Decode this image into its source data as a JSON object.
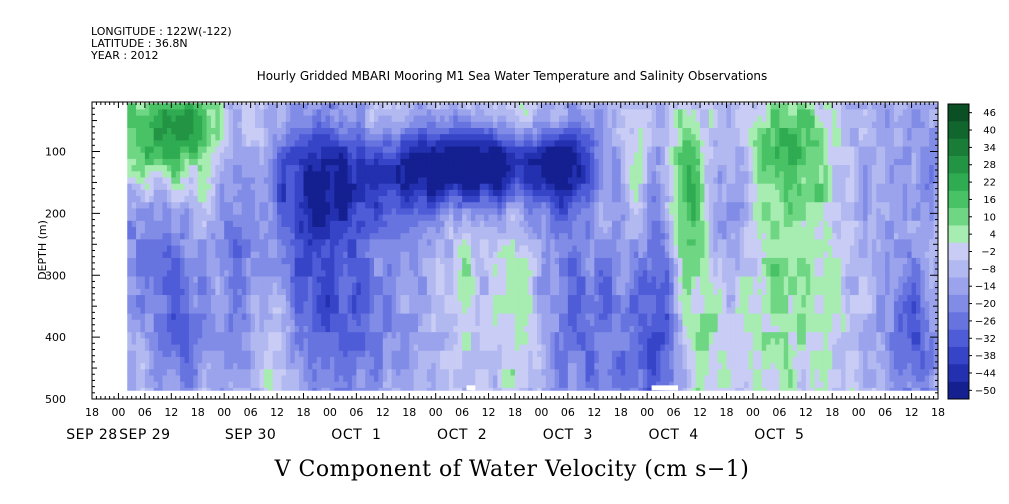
{
  "header": {
    "longitude": "LONGITUDE : 122W(-122)",
    "latitude": "LATITUDE : 36.8N",
    "year": "YEAR : 2012"
  },
  "chart_data": {
    "type": "heatmap",
    "title": "Hourly Gridded MBARI Mooring M1 Sea Water Temperature and Salinity Observations",
    "xlabel": "V Component of Water Velocity (cm s−1)",
    "ylabel": "DEPTH (m)",
    "y_inverted": true,
    "ylim": [
      500,
      20
    ],
    "yticks": [
      100,
      200,
      300,
      400,
      500
    ],
    "xlim_hours": [
      -6,
      186
    ],
    "x_hour_ticks": [
      {
        "h": -6,
        "label": "18"
      },
      {
        "h": 0,
        "label": "00"
      },
      {
        "h": 6,
        "label": "06"
      },
      {
        "h": 12,
        "label": "12"
      },
      {
        "h": 18,
        "label": "18"
      },
      {
        "h": 24,
        "label": "00"
      },
      {
        "h": 30,
        "label": "06"
      },
      {
        "h": 36,
        "label": "12"
      },
      {
        "h": 42,
        "label": "18"
      },
      {
        "h": 48,
        "label": "00"
      },
      {
        "h": 54,
        "label": "06"
      },
      {
        "h": 60,
        "label": "12"
      },
      {
        "h": 66,
        "label": "18"
      },
      {
        "h": 72,
        "label": "00"
      },
      {
        "h": 78,
        "label": "06"
      },
      {
        "h": 84,
        "label": "12"
      },
      {
        "h": 90,
        "label": "18"
      },
      {
        "h": 96,
        "label": "00"
      },
      {
        "h": 102,
        "label": "06"
      },
      {
        "h": 108,
        "label": "12"
      },
      {
        "h": 114,
        "label": "18"
      },
      {
        "h": 120,
        "label": "00"
      },
      {
        "h": 126,
        "label": "06"
      },
      {
        "h": 132,
        "label": "12"
      },
      {
        "h": 138,
        "label": "18"
      },
      {
        "h": 144,
        "label": "00"
      },
      {
        "h": 150,
        "label": "06"
      },
      {
        "h": 156,
        "label": "12"
      },
      {
        "h": 162,
        "label": "18"
      },
      {
        "h": 168,
        "label": "00"
      },
      {
        "h": 174,
        "label": "06"
      },
      {
        "h": 180,
        "label": "12"
      },
      {
        "h": 186,
        "label": "18"
      }
    ],
    "x_day_labels": [
      {
        "h": -6,
        "label": "SEP 28"
      },
      {
        "h": 6,
        "label": "SEP 29"
      },
      {
        "h": 30,
        "label": "SEP 30"
      },
      {
        "h": 54,
        "label": "OCT  1"
      },
      {
        "h": 78,
        "label": "OCT  2"
      },
      {
        "h": 102,
        "label": "OCT  3"
      },
      {
        "h": 126,
        "label": "OCT  4"
      },
      {
        "h": 150,
        "label": "OCT  5"
      }
    ],
    "colorbar_labels": [
      "46",
      "40",
      "34",
      "28",
      "22",
      "16",
      "10",
      "4",
      "−2",
      "−8",
      "−14",
      "−20",
      "−26",
      "−32",
      "−38",
      "−44",
      "−50"
    ],
    "color_levels": [
      {
        "v": 46,
        "c": "#0b4f24"
      },
      {
        "v": 40,
        "c": "#11662e"
      },
      {
        "v": 34,
        "c": "#197d38"
      },
      {
        "v": 28,
        "c": "#229443"
      },
      {
        "v": 22,
        "c": "#2fab52"
      },
      {
        "v": 16,
        "c": "#48c265"
      },
      {
        "v": 10,
        "c": "#6fd784"
      },
      {
        "v": 4,
        "c": "#a7ecb0"
      },
      {
        "v": -2,
        "c": "#c9ccf4"
      },
      {
        "v": -8,
        "c": "#b2b8f0"
      },
      {
        "v": -14,
        "c": "#9aa3ec"
      },
      {
        "v": -20,
        "c": "#818ce7"
      },
      {
        "v": -26,
        "c": "#6774e0"
      },
      {
        "v": -32,
        "c": "#4e5cd8"
      },
      {
        "v": -38,
        "c": "#3644c8"
      },
      {
        "v": -44,
        "c": "#2330b0"
      },
      {
        "v": -50,
        "c": "#141f90"
      }
    ],
    "data_x_hours": [
      2,
      186
    ],
    "data_depth": [
      22,
      486
    ],
    "time_step_hours": 1,
    "depth_step_m": 10,
    "field_features": [
      {
        "h": 8,
        "d": 80,
        "v": 26,
        "sh": 10,
        "sd": 60
      },
      {
        "h": 16,
        "d": 40,
        "v": 16,
        "sh": 6,
        "sd": 40
      },
      {
        "h": 6,
        "d": 250,
        "v": -16,
        "sh": 8,
        "sd": 100
      },
      {
        "h": 14,
        "d": 380,
        "v": -20,
        "sh": 5,
        "sd": 90
      },
      {
        "h": 20,
        "d": 300,
        "v": 6,
        "sh": 3,
        "sd": 160
      },
      {
        "h": 26,
        "d": 200,
        "v": -18,
        "sh": 4,
        "sd": 200
      },
      {
        "h": 30,
        "d": 100,
        "v": 12,
        "sh": 3,
        "sd": 80
      },
      {
        "h": 35,
        "d": 400,
        "v": 14,
        "sh": 3,
        "sd": 90
      },
      {
        "h": 42,
        "d": 250,
        "v": -26,
        "sh": 7,
        "sd": 160
      },
      {
        "h": 50,
        "d": 140,
        "v": -28,
        "sh": 10,
        "sd": 60
      },
      {
        "h": 54,
        "d": 360,
        "v": -20,
        "sh": 6,
        "sd": 120
      },
      {
        "h": 62,
        "d": 50,
        "v": 10,
        "sh": 5,
        "sd": 40
      },
      {
        "h": 66,
        "d": 300,
        "v": -8,
        "sh": 4,
        "sd": 200
      },
      {
        "h": 72,
        "d": 120,
        "v": -32,
        "sh": 10,
        "sd": 50
      },
      {
        "h": 78,
        "d": 280,
        "v": 8,
        "sh": 2,
        "sd": 120
      },
      {
        "h": 84,
        "d": 120,
        "v": -34,
        "sh": 10,
        "sd": 45
      },
      {
        "h": 90,
        "d": 350,
        "v": 10,
        "sh": 3,
        "sd": 120
      },
      {
        "h": 96,
        "d": 40,
        "v": 12,
        "sh": 8,
        "sd": 40
      },
      {
        "h": 100,
        "d": 110,
        "v": -34,
        "sh": 5,
        "sd": 50
      },
      {
        "h": 104,
        "d": 300,
        "v": -22,
        "sh": 6,
        "sd": 200
      },
      {
        "h": 108,
        "d": 200,
        "v": 12,
        "sh": 3,
        "sd": 60
      },
      {
        "h": 114,
        "d": 300,
        "v": -12,
        "sh": 4,
        "sd": 200
      },
      {
        "h": 117,
        "d": 150,
        "v": 20,
        "sh": 3,
        "sd": 120
      },
      {
        "h": 122,
        "d": 350,
        "v": -30,
        "sh": 4,
        "sd": 200
      },
      {
        "h": 128,
        "d": 170,
        "v": 28,
        "sh": 3,
        "sd": 100
      },
      {
        "h": 132,
        "d": 400,
        "v": 10,
        "sh": 4,
        "sd": 150
      },
      {
        "h": 138,
        "d": 200,
        "v": -22,
        "sh": 4,
        "sd": 100
      },
      {
        "h": 146,
        "d": 260,
        "v": 12,
        "sh": 10,
        "sd": 150
      },
      {
        "h": 152,
        "d": 80,
        "v": 18,
        "sh": 6,
        "sd": 60
      },
      {
        "h": 160,
        "d": 300,
        "v": 6,
        "sh": 8,
        "sd": 180
      },
      {
        "h": 172,
        "d": 200,
        "v": -10,
        "sh": 6,
        "sd": 200
      },
      {
        "h": 180,
        "d": 400,
        "v": -24,
        "sh": 4,
        "sd": 80
      },
      {
        "h": 184,
        "d": 120,
        "v": -12,
        "sh": 4,
        "sd": 100
      }
    ],
    "missing_patches": [
      {
        "h0": 79,
        "h1": 81,
        "d0": 478,
        "d1": 486
      },
      {
        "h0": 121,
        "h1": 127,
        "d0": 478,
        "d1": 486
      }
    ],
    "grid": false,
    "legend_placement": "right colorbar"
  }
}
